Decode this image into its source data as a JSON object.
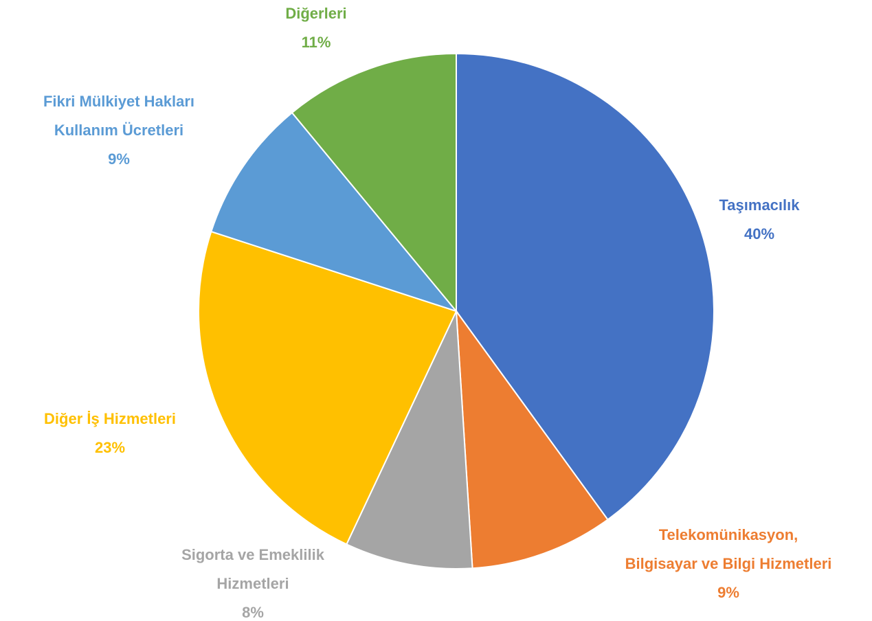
{
  "chart_data": {
    "type": "pie",
    "categories": [
      "Taşımacılık",
      "Telekomünikasyon, Bilgisayar ve Bilgi Hizmetleri",
      "Sigorta ve Emeklilik Hizmetleri",
      "Diğer İş Hizmetleri",
      "Fikri Mülkiyet Hakları Kullanım Ücretleri",
      "Diğerleri"
    ],
    "values": [
      40,
      9,
      8,
      23,
      9,
      11
    ],
    "value_labels": [
      "40%",
      "9%",
      "8%",
      "23%",
      "9%",
      "11%"
    ],
    "colors": [
      "#4472c4",
      "#ed7d31",
      "#a5a5a5",
      "#ffc000",
      "#5b9bd5",
      "#70ad47"
    ]
  }
}
